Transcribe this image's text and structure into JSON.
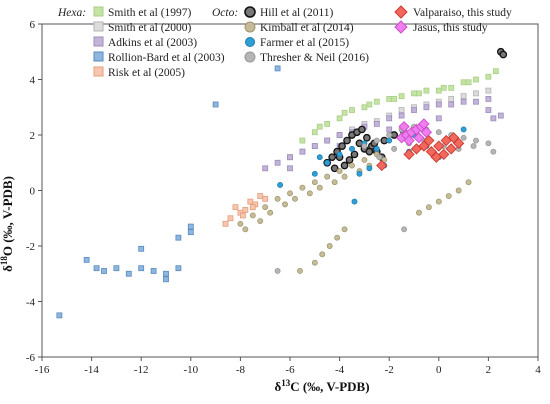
{
  "chart_data": {
    "type": "scatter",
    "xlabel": "δ13C (‰, V-PDB)",
    "ylabel": "δ18O (‰, V-PDB)",
    "xlim": [
      -16,
      4
    ],
    "ylim": [
      -6,
      6
    ],
    "xticks": [
      -16,
      -14,
      -12,
      -10,
      -8,
      -6,
      -4,
      -2,
      0,
      2,
      4
    ],
    "yticks": [
      -6,
      -4,
      -2,
      0,
      2,
      4,
      6
    ],
    "grid": false,
    "legend_groups": [
      {
        "label": "Hexa:",
        "position": "top-left"
      },
      {
        "label": "Octo:",
        "position": "top-center"
      }
    ],
    "series": [
      {
        "name": "Smith et al (1997)",
        "group": "Hexa:",
        "marker": "square",
        "fill": "#c5e3a4",
        "stroke": "#a9cf86",
        "points": [
          [
            -5.5,
            1.8
          ],
          [
            -5,
            2.1
          ],
          [
            -4.5,
            2.4
          ],
          [
            -4,
            2.6
          ],
          [
            -3.5,
            2.9
          ],
          [
            -3,
            3
          ],
          [
            -2.5,
            3.2
          ],
          [
            -2,
            3.3
          ],
          [
            -1.5,
            3.4
          ],
          [
            -1,
            3.5
          ],
          [
            -0.5,
            3.6
          ],
          [
            0,
            3.6
          ],
          [
            0.5,
            3.7
          ],
          [
            1,
            3.9
          ],
          [
            1.5,
            4
          ],
          [
            2,
            4.1
          ],
          [
            2.3,
            4.3
          ],
          [
            -4.8,
            2.3
          ],
          [
            -3.8,
            2.8
          ],
          [
            -2.8,
            3.1
          ],
          [
            -1.8,
            3.3
          ],
          [
            -0.8,
            3.5
          ],
          [
            0.2,
            3.7
          ],
          [
            1.2,
            3.9
          ]
        ]
      },
      {
        "name": "Smith et al (2000)",
        "group": "Hexa:",
        "marker": "square",
        "fill": "#dcdcdc",
        "stroke": "#b3b3b3",
        "points": [
          [
            -6,
            1.2
          ],
          [
            -5,
            1.6
          ],
          [
            -4,
            2
          ],
          [
            -3,
            2.4
          ],
          [
            -2,
            2.7
          ],
          [
            -1,
            3
          ],
          [
            0,
            3.2
          ],
          [
            1,
            3.4
          ],
          [
            2,
            3.6
          ],
          [
            -5.5,
            1.4
          ],
          [
            -4.5,
            1.8
          ],
          [
            -3.5,
            2.2
          ],
          [
            -2.5,
            2.5
          ],
          [
            -1.5,
            2.9
          ],
          [
            -0.5,
            3.1
          ],
          [
            0.5,
            3.3
          ],
          [
            1.5,
            3.5
          ]
        ]
      },
      {
        "name": "Adkins et al (2003)",
        "group": "Hexa:",
        "marker": "square",
        "fill": "#c2b4d6",
        "stroke": "#9d8bbf",
        "points": [
          [
            -7,
            0.8
          ],
          [
            -6,
            1.2
          ],
          [
            -5,
            1.6
          ],
          [
            -4,
            2
          ],
          [
            -3,
            2.3
          ],
          [
            -2,
            2.6
          ],
          [
            -1,
            2.9
          ],
          [
            0,
            3.1
          ],
          [
            1,
            3.2
          ],
          [
            2,
            3.3
          ],
          [
            2.5,
            2.7
          ],
          [
            -6.5,
            1
          ],
          [
            -5.5,
            1.4
          ],
          [
            -4.5,
            1.8
          ],
          [
            -3.5,
            2.1
          ],
          [
            -2.5,
            2.4
          ],
          [
            -1.5,
            2.7
          ],
          [
            -0.5,
            3
          ],
          [
            0.5,
            3.1
          ],
          [
            1.5,
            3.2
          ],
          [
            2.2,
            2.6
          ],
          [
            -6,
            0.8
          ],
          [
            -4,
            1.6
          ],
          [
            -2,
            2.2
          ],
          [
            0,
            2.6
          ],
          [
            2,
            2.9
          ]
        ]
      },
      {
        "name": "Rollion-Bard et al (2003)",
        "group": "Hexa:",
        "marker": "square",
        "fill": "#8db7de",
        "stroke": "#5b89bf",
        "points": [
          [
            -15.3,
            -4.5
          ],
          [
            -14.2,
            -2.5
          ],
          [
            -13.8,
            -2.8
          ],
          [
            -13.5,
            -2.9
          ],
          [
            -13,
            -2.8
          ],
          [
            -12.5,
            -3
          ],
          [
            -12,
            -2.8
          ],
          [
            -12,
            -2.1
          ],
          [
            -11.5,
            -2.9
          ],
          [
            -11,
            -3.2
          ],
          [
            -11,
            -3
          ],
          [
            -10.5,
            -2.8
          ],
          [
            -10.5,
            -1.7
          ],
          [
            -10,
            -1.3
          ],
          [
            -10,
            -1.5
          ],
          [
            -9,
            3.1
          ],
          [
            -6.5,
            4.4
          ]
        ]
      },
      {
        "name": "Risk et al (2005)",
        "group": "Hexa:",
        "marker": "square",
        "fill": "#f6c6ae",
        "stroke": "#e59d7e",
        "points": [
          [
            -8.2,
            -0.6
          ],
          [
            -8,
            -0.8
          ],
          [
            -7.8,
            -0.7
          ],
          [
            -7.6,
            -0.4
          ],
          [
            -7.4,
            -0.5
          ],
          [
            -7.2,
            -0.2
          ],
          [
            -7,
            -0.3
          ],
          [
            -8.4,
            -1
          ],
          [
            -8.6,
            -1.2
          ],
          [
            -7.9,
            -0.9
          ],
          [
            -7.5,
            -0.6
          ]
        ]
      },
      {
        "name": "Hill et al (2011)",
        "group": "Octo:",
        "marker": "circle",
        "fill": "#777777",
        "stroke": "#111111",
        "points": [
          [
            -4.5,
            1
          ],
          [
            -4.3,
            1.2
          ],
          [
            -4.1,
            1.4
          ],
          [
            -3.9,
            1.6
          ],
          [
            -3.7,
            1.8
          ],
          [
            -3.5,
            2
          ],
          [
            -3.3,
            2.1
          ],
          [
            -3.1,
            2.2
          ],
          [
            -2.9,
            1.9
          ],
          [
            -2.7,
            1.6
          ],
          [
            -2.5,
            1.4
          ],
          [
            -2.3,
            1.2
          ],
          [
            -4.2,
            0.8
          ],
          [
            -3.8,
            0.9
          ],
          [
            -3.4,
            1.3
          ],
          [
            -3,
            1.5
          ],
          [
            -2.6,
            1.7
          ],
          [
            -2.2,
            1.8
          ],
          [
            -1.8,
            2
          ],
          [
            -1.4,
            2.1
          ],
          [
            -3.6,
            1.1
          ],
          [
            -4,
            1.2
          ],
          [
            -3.2,
            1.7
          ],
          [
            -2.8,
            1.4
          ],
          [
            2.5,
            5
          ],
          [
            2.6,
            4.9
          ]
        ]
      },
      {
        "name": "Kimball et al (2014)",
        "group": "Octo:",
        "marker": "circle",
        "fill": "#c5bc97",
        "stroke": "#9d936c",
        "points": [
          [
            -8,
            -1.2
          ],
          [
            -7.5,
            -0.9
          ],
          [
            -7,
            -0.6
          ],
          [
            -6.5,
            -0.3
          ],
          [
            -6,
            -0.1
          ],
          [
            -5.5,
            0.1
          ],
          [
            -5,
            0.3
          ],
          [
            -4.5,
            0.5
          ],
          [
            -4,
            0.7
          ],
          [
            -3.5,
            0.9
          ],
          [
            -3,
            1.1
          ],
          [
            -2.5,
            1.3
          ],
          [
            -7.8,
            -1.4
          ],
          [
            -7.2,
            -1.1
          ],
          [
            -6.8,
            -0.8
          ],
          [
            -6.2,
            -0.5
          ],
          [
            -5.8,
            -0.3
          ],
          [
            -5.2,
            -0.1
          ],
          [
            -4.8,
            0.1
          ],
          [
            -4.2,
            0.3
          ],
          [
            -3.8,
            0.5
          ],
          [
            -3.2,
            0.7
          ],
          [
            -2.8,
            0.9
          ],
          [
            -2.2,
            1.1
          ],
          [
            -5,
            -2.6
          ],
          [
            -4.7,
            -2.3
          ],
          [
            -4.4,
            -2
          ],
          [
            -4.1,
            -1.7
          ],
          [
            -3.8,
            -1.4
          ],
          [
            -5.6,
            -2.9
          ],
          [
            0,
            -0.4
          ],
          [
            0.4,
            -0.2
          ],
          [
            0.8,
            0
          ],
          [
            1.2,
            0.3
          ],
          [
            -0.4,
            -0.6
          ],
          [
            -0.8,
            -0.8
          ]
        ]
      },
      {
        "name": "Farmer et al (2015)",
        "group": "Octo:",
        "marker": "circle",
        "fill": "#2f9ed4",
        "stroke": "#1c7fb2",
        "points": [
          [
            -4.5,
            1
          ],
          [
            -4,
            1.3
          ],
          [
            -3.5,
            1.5
          ],
          [
            -3,
            1.7
          ],
          [
            -2.5,
            1.5
          ],
          [
            -2,
            1.8
          ],
          [
            -1.5,
            1.9
          ],
          [
            -1,
            2
          ],
          [
            -0.5,
            1.6
          ],
          [
            0,
            1.2
          ],
          [
            -3.2,
            0.6
          ],
          [
            -2.8,
            0.8
          ],
          [
            -6.4,
            0.2
          ],
          [
            -3.4,
            -0.4
          ],
          [
            1,
            2.2
          ],
          [
            -1.2,
            1.4
          ],
          [
            -2.2,
            0.9
          ],
          [
            -5,
            0.6
          ],
          [
            -4.8,
            1.2
          ]
        ]
      },
      {
        "name": "Thresher & Neil (2016)",
        "group": "Octo:",
        "marker": "circle",
        "fill": "#b5b5b5",
        "stroke": "#969696",
        "points": [
          [
            -3,
            1.6
          ],
          [
            -2.5,
            1.8
          ],
          [
            -2,
            2
          ],
          [
            -1.5,
            2.2
          ],
          [
            -1,
            2.3
          ],
          [
            -0.5,
            2.2
          ],
          [
            0,
            2.1
          ],
          [
            0.5,
            2
          ],
          [
            1,
            1.9
          ],
          [
            1.5,
            1.8
          ],
          [
            2,
            1.7
          ],
          [
            -1.8,
            1.5
          ],
          [
            -1.2,
            1.7
          ],
          [
            -0.6,
            1.8
          ],
          [
            0.2,
            1.6
          ],
          [
            0.8,
            1.5
          ],
          [
            1.4,
            1.6
          ],
          [
            2.2,
            1.4
          ],
          [
            -2.4,
            1.2
          ],
          [
            -6.5,
            -2.9
          ],
          [
            -1.4,
            -1.4
          ]
        ]
      }
    ],
    "study_series": [
      {
        "name": "Valparaiso, this study",
        "marker": "diamond",
        "fill": "#f2685d",
        "stroke": "#c83a31",
        "points": [
          [
            -1.2,
            1.3
          ],
          [
            -0.9,
            1.5
          ],
          [
            -0.6,
            1.6
          ],
          [
            -0.3,
            1.4
          ],
          [
            0,
            1.6
          ],
          [
            0.3,
            1.8
          ],
          [
            0.6,
            1.9
          ],
          [
            0.8,
            1.7
          ],
          [
            -0.1,
            1.2
          ],
          [
            0.2,
            1.3
          ],
          [
            -0.4,
            1.8
          ],
          [
            0.5,
            1.5
          ],
          [
            -2.3,
            0.9
          ]
        ]
      },
      {
        "name": "Jasus, this study",
        "marker": "diamond",
        "fill": "#f07df0",
        "stroke": "#c94ec9",
        "points": [
          [
            -1.5,
            1.9
          ],
          [
            -1.3,
            2
          ],
          [
            -1.1,
            2.1
          ],
          [
            -0.9,
            2.2
          ],
          [
            -0.7,
            2.3
          ],
          [
            -0.5,
            2.1
          ],
          [
            -1.4,
            2.3
          ],
          [
            -1.2,
            1.8
          ],
          [
            -0.8,
            1.9
          ],
          [
            -0.6,
            2.4
          ]
        ]
      }
    ],
    "legend": {
      "hexa_group": "Hexa:",
      "octo_group": "Octo:",
      "entries": [
        "Smith et al (1997)",
        "Smith et al (2000)",
        "Adkins et al (2003)",
        "Rollion-Bard et al (2003)",
        "Risk et al (2005)",
        "Hill et al (2011)",
        "Kimball et al (2014)",
        "Farmer et al (2015)",
        "Thresher & Neil (2016)",
        "Valparaiso, this study",
        "Jasus, this study"
      ]
    }
  }
}
